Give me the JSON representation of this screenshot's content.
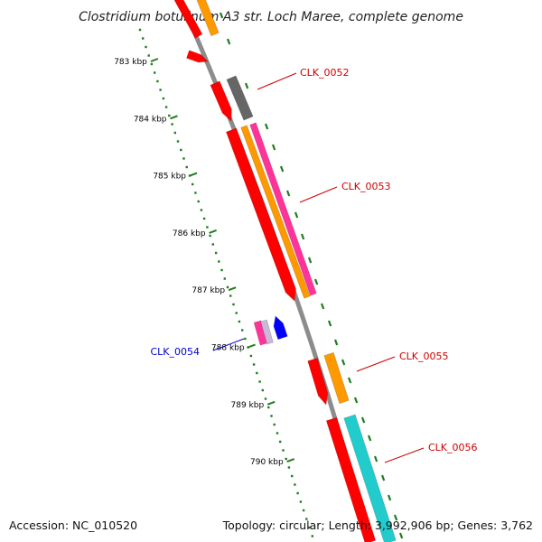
{
  "title": "Clostridium botulinum A3 str. Loch Maree, complete genome",
  "accession_text": "Accession: NC_010520",
  "topology_text": "Topology: circular; Length: 3,992,906 bp; Genes: 3,762",
  "colors": {
    "backbone": "#8c8c8c",
    "ruler": "#1e7d1e",
    "label_forward": "#cc0000",
    "label_reverse": "#0000cc",
    "red": "#ff0000",
    "orange": "#ff9900",
    "grey": "#666666",
    "magenta": "#ff3399",
    "cyan": "#22cccc",
    "blue": "#0000ff",
    "lavender": "#c9b8d8"
  },
  "ruler_labels": [
    "783 kbp",
    "784 kbp",
    "785 kbp",
    "786 kbp",
    "787 kbp",
    "788 kbp",
    "789 kbp",
    "790 kbp"
  ],
  "gene_labels": [
    {
      "text": "CLK_0052",
      "color": "label_forward"
    },
    {
      "text": "CLK_0053",
      "color": "label_forward"
    },
    {
      "text": "CLK_0054",
      "color": "label_reverse"
    },
    {
      "text": "CLK_0055",
      "color": "label_forward"
    },
    {
      "text": "CLK_0056",
      "color": "label_forward"
    }
  ]
}
